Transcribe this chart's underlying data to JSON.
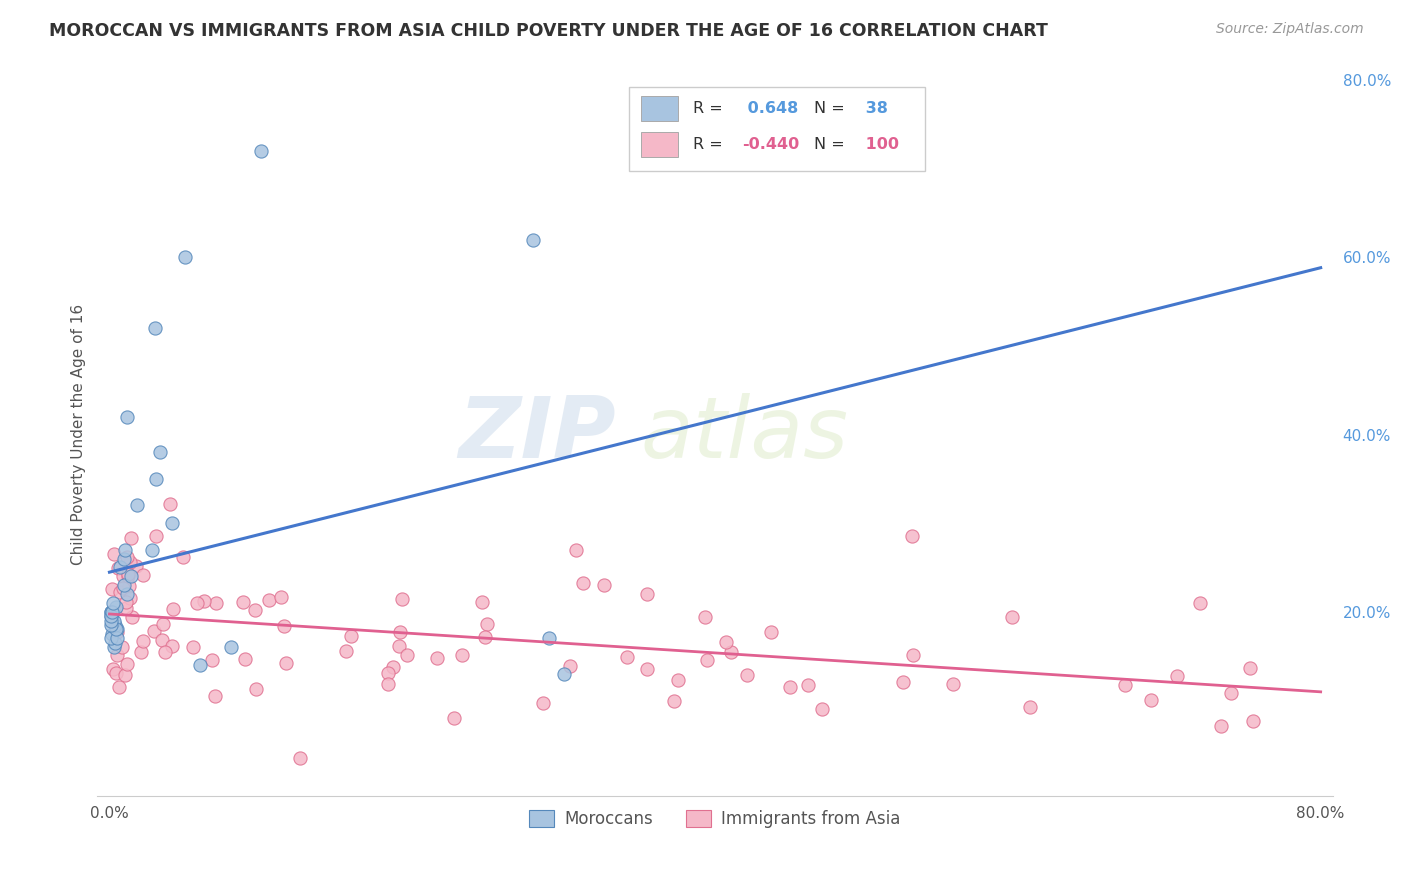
{
  "title": "MOROCCAN VS IMMIGRANTS FROM ASIA CHILD POVERTY UNDER THE AGE OF 16 CORRELATION CHART",
  "source": "Source: ZipAtlas.com",
  "ylabel": "Child Poverty Under the Age of 16",
  "xlim": [
    -0.008,
    0.808
  ],
  "ylim": [
    -0.008,
    0.808
  ],
  "xticks": [
    0.0,
    0.1,
    0.2,
    0.3,
    0.4,
    0.5,
    0.6,
    0.7,
    0.8
  ],
  "xticklabels": [
    "0.0%",
    "",
    "",
    "",
    "",
    "",
    "",
    "",
    "80.0%"
  ],
  "yticks_right": [
    0.0,
    0.2,
    0.4,
    0.6,
    0.8
  ],
  "yticklabels_right": [
    "",
    "20.0%",
    "40.0%",
    "60.0%",
    "80.0%"
  ],
  "moroccan_color": "#A8C4E0",
  "moroccan_edge_color": "#5588BB",
  "asian_color": "#F5B8C8",
  "asian_edge_color": "#E07090",
  "moroccan_line_color": "#4477CC",
  "asian_line_color": "#E06090",
  "legend_moroccan_R": "0.648",
  "legend_moroccan_N": "38",
  "legend_asian_R": "-0.440",
  "legend_asian_N": "100",
  "watermark_zip": "ZIP",
  "watermark_atlas": "atlas",
  "background_color": "#FFFFFF",
  "grid_color": "#CCCCCC",
  "moroccan_seed": 42,
  "asian_seed": 77
}
